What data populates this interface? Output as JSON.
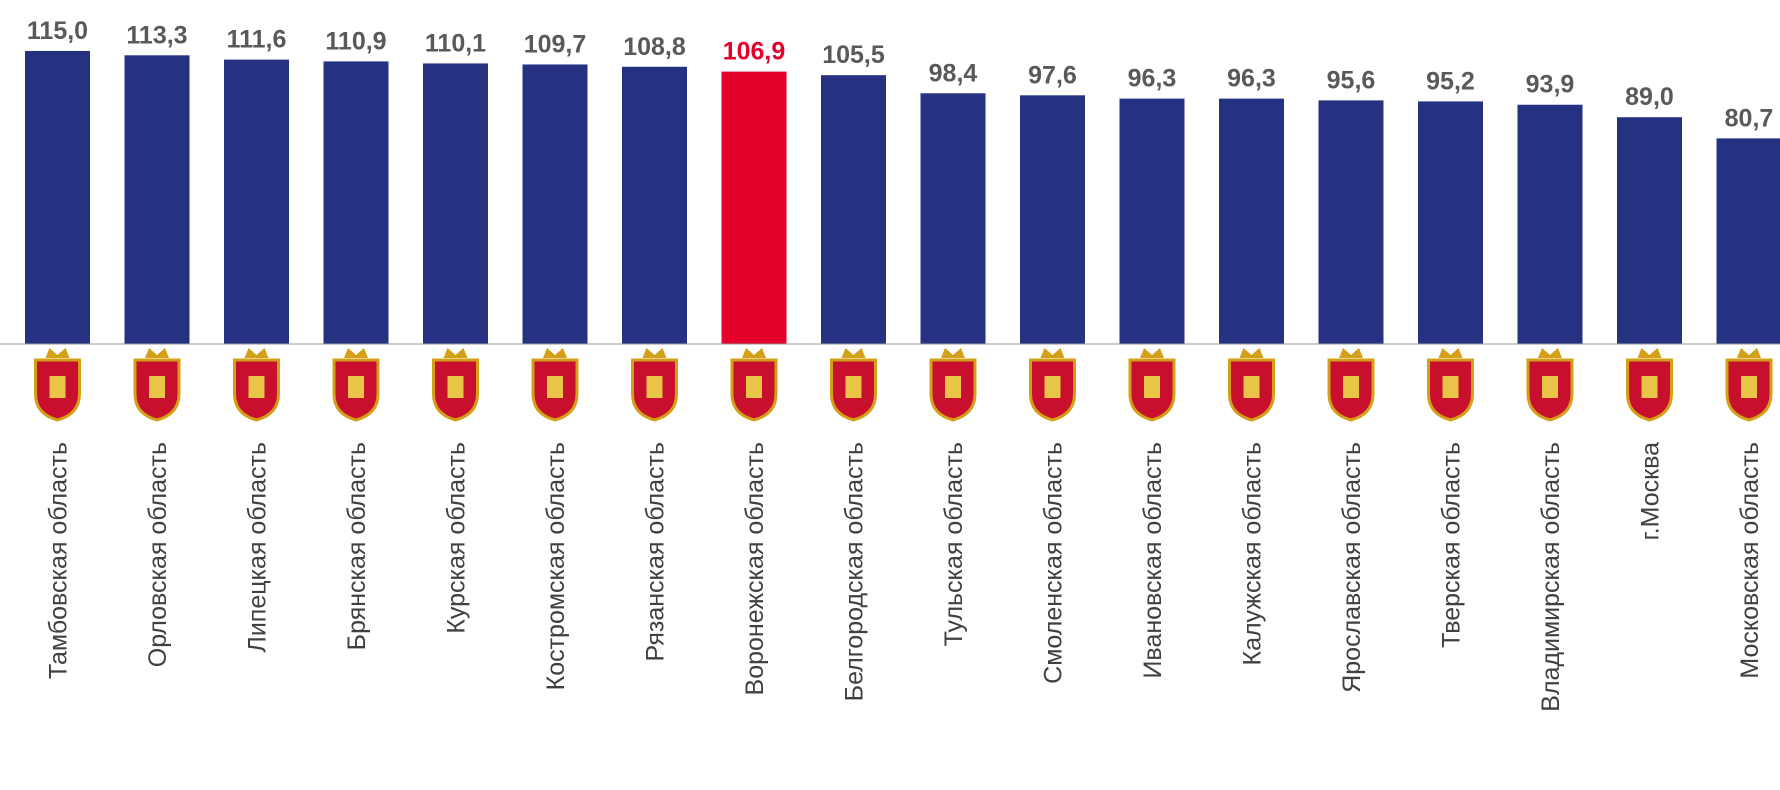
{
  "chart_data": {
    "type": "bar",
    "categories": [
      "Тамбовская область",
      "Орловская область",
      "Липецкая область",
      "Брянская область",
      "Курская область",
      "Костромская область",
      "Рязанская область",
      "Воронежская область",
      "Белгородская область",
      "Тульская область",
      "Смоленская область",
      "Ивановская область",
      "Калужская область",
      "Ярославская область",
      "Тверская область",
      "Владимирская область",
      "г.Москва",
      "Московская область"
    ],
    "values": [
      115.0,
      113.3,
      111.6,
      110.9,
      110.1,
      109.7,
      108.8,
      106.9,
      105.5,
      98.4,
      97.6,
      96.3,
      96.3,
      95.6,
      95.2,
      93.9,
      89.0,
      80.7
    ],
    "value_labels": [
      "115,0",
      "113,3",
      "111,6",
      "110,9",
      "110,1",
      "109,7",
      "108,8",
      "106,9",
      "105,5",
      "98,4",
      "97,6",
      "96,3",
      "96,3",
      "95,6",
      "95,2",
      "93,9",
      "89,0",
      "80,7"
    ],
    "colors": [
      "#253282",
      "#253282",
      "#253282",
      "#253282",
      "#253282",
      "#253282",
      "#253282",
      "#e4002b",
      "#253282",
      "#253282",
      "#253282",
      "#253282",
      "#253282",
      "#253282",
      "#253282",
      "#253282",
      "#253282",
      "#253282"
    ],
    "label_colors": [
      "#595959",
      "#595959",
      "#595959",
      "#595959",
      "#595959",
      "#595959",
      "#595959",
      "#e4002b",
      "#595959",
      "#595959",
      "#595959",
      "#595959",
      "#595959",
      "#595959",
      "#595959",
      "#595959",
      "#595959",
      "#595959"
    ],
    "ylim": [
      0,
      135
    ]
  }
}
